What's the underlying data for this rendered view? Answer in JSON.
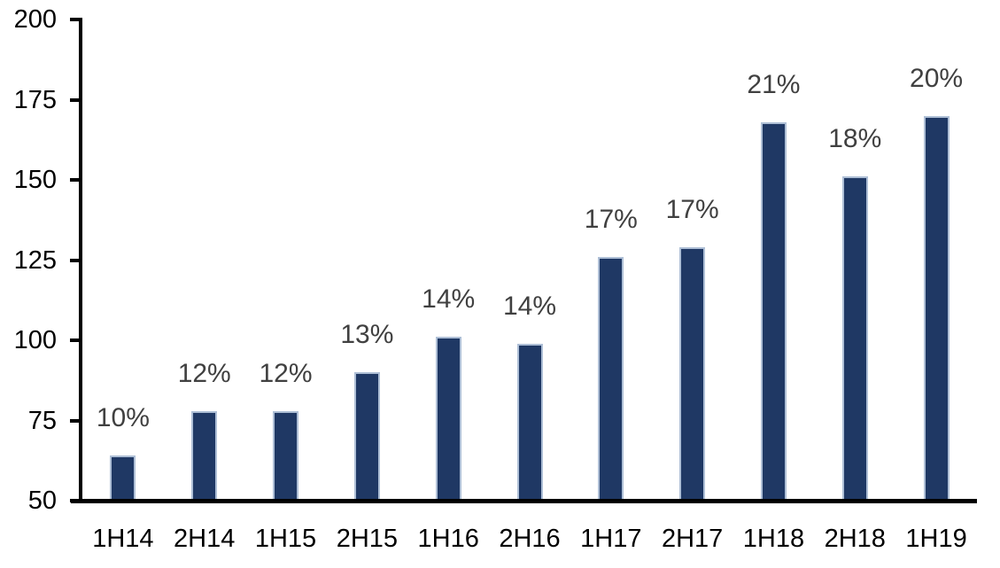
{
  "chart_data": {
    "type": "bar",
    "title": "",
    "xlabel": "",
    "ylabel": "",
    "categories": [
      "1H14",
      "2H14",
      "1H15",
      "2H15",
      "1H16",
      "2H16",
      "1H17",
      "2H17",
      "1H18",
      "2H18",
      "1H19"
    ],
    "values": [
      64,
      78,
      78,
      90,
      101,
      99,
      126,
      129,
      168,
      151,
      170
    ],
    "data_labels": [
      "10%",
      "12%",
      "12%",
      "13%",
      "14%",
      "14%",
      "17%",
      "17%",
      "21%",
      "18%",
      "20%"
    ],
    "ylim": [
      50,
      200
    ],
    "yticks": [
      50,
      75,
      100,
      125,
      150,
      175,
      200
    ],
    "grid": false,
    "legend": false,
    "colors": {
      "bar_fill": "#1f3864",
      "bar_border": "#aebfd6",
      "data_label": "#404040",
      "axis_text": "#000000",
      "axis_line": "#000000",
      "background": "#ffffff"
    }
  }
}
